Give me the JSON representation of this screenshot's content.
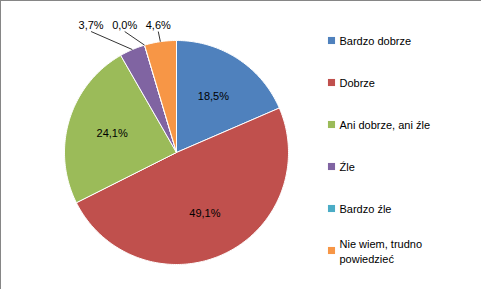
{
  "chart_data": {
    "type": "pie",
    "categories": [
      "Bardzo dobrze",
      "Dobrze",
      "Ani dobrze, ani źle",
      "Źle",
      "Bardzo źle",
      "Nie wiem, trudno powiedzieć"
    ],
    "values": [
      18.5,
      49.1,
      24.1,
      3.7,
      0.0,
      4.6
    ],
    "value_labels": [
      "18,5%",
      "49,1%",
      "24,1%",
      "3,7%",
      "0,0%",
      "4,6%"
    ],
    "colors": [
      "#4F81BD",
      "#C0504D",
      "#9BBB59",
      "#8064A2",
      "#4BACC6",
      "#F79646"
    ],
    "data_labels": true,
    "legend": "right"
  }
}
